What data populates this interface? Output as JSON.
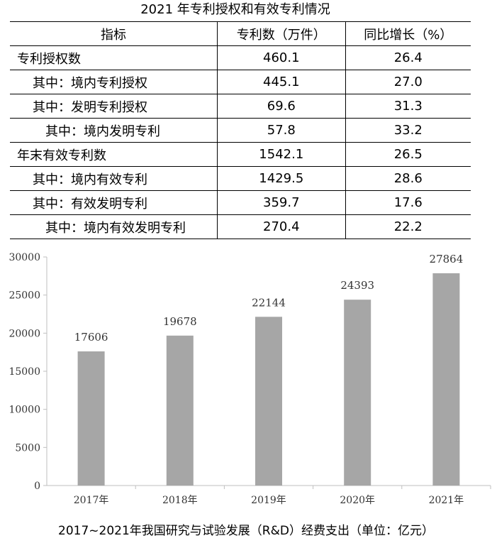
{
  "table": {
    "title": "2021 年专利授权和有效专利情况",
    "headers": [
      "指标",
      "专利数（万件）",
      "同比增长（%）"
    ],
    "rows": [
      {
        "label": "专利授权数",
        "value": "460.1",
        "growth": "26.4"
      },
      {
        "label": "其中：境内专利授权",
        "value": "445.1",
        "growth": "27.0"
      },
      {
        "label": "其中：发明专利授权",
        "value": "69.6",
        "growth": "31.3"
      },
      {
        "label": "其中：境内发明专利",
        "value": "57.8",
        "growth": "33.2"
      },
      {
        "label": "年末有效专利数",
        "value": "1542.1",
        "growth": "26.5"
      },
      {
        "label": "其中：境内有效专利",
        "value": "1429.5",
        "growth": "28.6"
      },
      {
        "label": "其中：有效发明专利",
        "value": "359.7",
        "growth": "17.6"
      },
      {
        "label": "其中：境内有效发明专利",
        "value": "270.4",
        "growth": "22.2"
      }
    ]
  },
  "chart_data": {
    "type": "bar",
    "title": "2017~2021年我国研究与试验发展（R&D）经费支出（单位：亿元）",
    "categories": [
      "2017年",
      "2018年",
      "2019年",
      "2020年",
      "2021年"
    ],
    "values": [
      17606,
      19678,
      22144,
      24393,
      27864
    ],
    "data_labels": [
      "17606",
      "19678",
      "22144",
      "24393",
      "27864"
    ],
    "ylim": [
      0,
      30000
    ],
    "yticks": [
      0,
      5000,
      10000,
      15000,
      20000,
      25000,
      30000
    ],
    "ytick_labels": [
      "0",
      "5000",
      "10000",
      "15000",
      "20000",
      "25000",
      "30000"
    ],
    "grid": false,
    "bar_color": "#a6a6a6",
    "axis_color": "#bfbfbf"
  }
}
